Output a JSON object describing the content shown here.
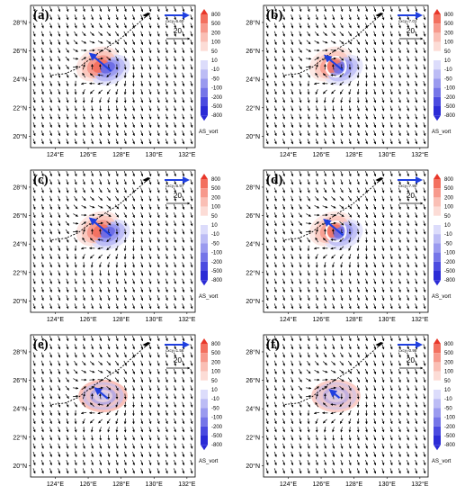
{
  "figure": {
    "x_ticks": [
      "124°E",
      "126°E",
      "128°E",
      "130°E",
      "132°E"
    ],
    "y_ticks": [
      "28°N",
      "26°N",
      "24°N",
      "22°N",
      "20°N"
    ],
    "colorbar": {
      "levels": [
        "800",
        "500",
        "200",
        "100",
        "50",
        "10",
        "-10",
        "-50",
        "-100",
        "-200",
        "-500",
        "-800"
      ],
      "variable": "AS_vort",
      "colors": [
        "#e8372a",
        "#f3705f",
        "#f7998c",
        "#fabfb5",
        "#fcdcd6",
        "#ffffff",
        "#dcdcfb",
        "#bcbcf5",
        "#9a9aef",
        "#7575e8",
        "#4a4ae0",
        "#2b2bd6"
      ]
    },
    "reference_vector_value": "20",
    "steering_color": "#1f3fe0"
  },
  "panels": [
    {
      "label": "(a)",
      "steering_label": "cxcy=6.60",
      "pattern": "dipole",
      "strength": 1.0
    },
    {
      "label": "(b)",
      "steering_label": "cxcy=7.01",
      "pattern": "dipole-ring",
      "strength": 0.85
    },
    {
      "label": "(c)",
      "steering_label": "cxcy=6.97",
      "pattern": "dipole",
      "strength": 1.0
    },
    {
      "label": "(d)",
      "steering_label": "cxcy=7.90",
      "pattern": "dipole-ring",
      "strength": 0.9
    },
    {
      "label": "(e)",
      "steering_label": "cxcy=1.56",
      "pattern": "ring",
      "strength": 0.6
    },
    {
      "label": "(f)",
      "steering_label": "cxcy=0.98",
      "pattern": "ring",
      "strength": 0.45
    }
  ]
}
